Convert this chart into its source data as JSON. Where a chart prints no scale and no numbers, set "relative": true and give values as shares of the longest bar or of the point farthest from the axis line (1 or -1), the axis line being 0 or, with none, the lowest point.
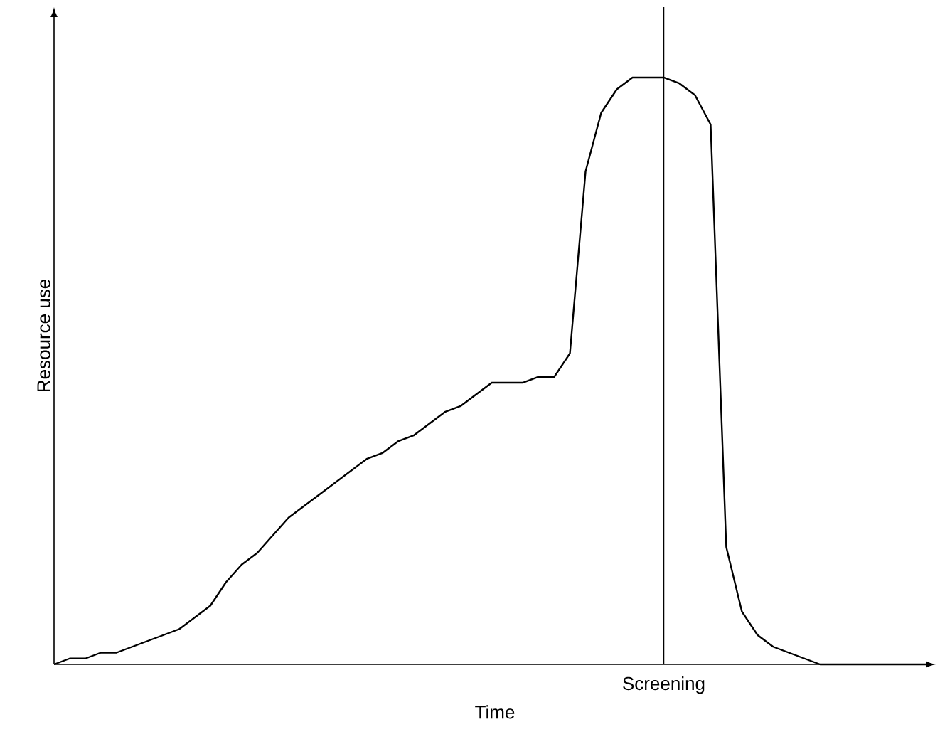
{
  "chart_data": {
    "type": "line",
    "relative": true,
    "xlabel": "Time",
    "ylabel": "Resource use",
    "color": "#000000",
    "categories": [
      null,
      null,
      null,
      null,
      null,
      null,
      null,
      null,
      null,
      null,
      null,
      null,
      null,
      null,
      null,
      null,
      null,
      null,
      null,
      null,
      null,
      null,
      null,
      null,
      null,
      null,
      null,
      null,
      null,
      null,
      null,
      null,
      null,
      null,
      null,
      null,
      null,
      null,
      null,
      null,
      null,
      null,
      null,
      null,
      null,
      null,
      null,
      null,
      null,
      null,
      null,
      null,
      null,
      null,
      null,
      null,
      null
    ],
    "values": [
      0,
      0.01,
      0.01,
      0.02,
      0.02,
      0.03,
      0.04,
      0.05,
      0.06,
      0.08,
      0.1,
      0.14,
      0.17,
      0.19,
      0.22,
      0.25,
      0.27,
      0.29,
      0.31,
      0.33,
      0.35,
      0.36,
      0.38,
      0.39,
      0.41,
      0.43,
      0.44,
      0.46,
      0.48,
      0.48,
      0.48,
      0.49,
      0.49,
      0.53,
      0.84,
      0.94,
      0.98,
      1.0,
      1.0,
      1.0,
      0.99,
      0.97,
      0.92,
      0.2,
      0.09,
      0.05,
      0.03,
      0.02,
      0.01,
      0,
      0,
      0,
      0,
      0,
      0,
      0,
      0
    ],
    "annotations": [
      "Screening"
    ]
  }
}
